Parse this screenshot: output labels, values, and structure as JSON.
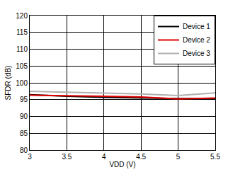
{
  "chart_data": {
    "type": "line",
    "x_label": "VDD (V)",
    "y_label": "SFDR (dB)",
    "x": [
      3,
      3.5,
      4,
      4.5,
      5,
      5.5
    ],
    "series": [
      {
        "name": "Device 1",
        "color": "#000000",
        "values": [
          96.5,
          96.0,
          95.7,
          95.5,
          95.3,
          95.3
        ]
      },
      {
        "name": "Device 2",
        "color": "#e00000",
        "values": [
          96.3,
          96.2,
          96.0,
          95.8,
          95.2,
          95.5
        ]
      },
      {
        "name": "Device 3",
        "color": "#b0b0b0",
        "values": [
          97.5,
          97.2,
          97.0,
          96.7,
          96.2,
          97.0
        ]
      }
    ],
    "xlim": [
      3,
      5.5
    ],
    "xticks": [
      3,
      3.5,
      4,
      4.5,
      5,
      5.5
    ],
    "ylim": [
      80,
      120
    ],
    "yticks": [
      80,
      85,
      90,
      95,
      100,
      105,
      110,
      115,
      120
    ],
    "grid": true,
    "legend": "upper right"
  }
}
